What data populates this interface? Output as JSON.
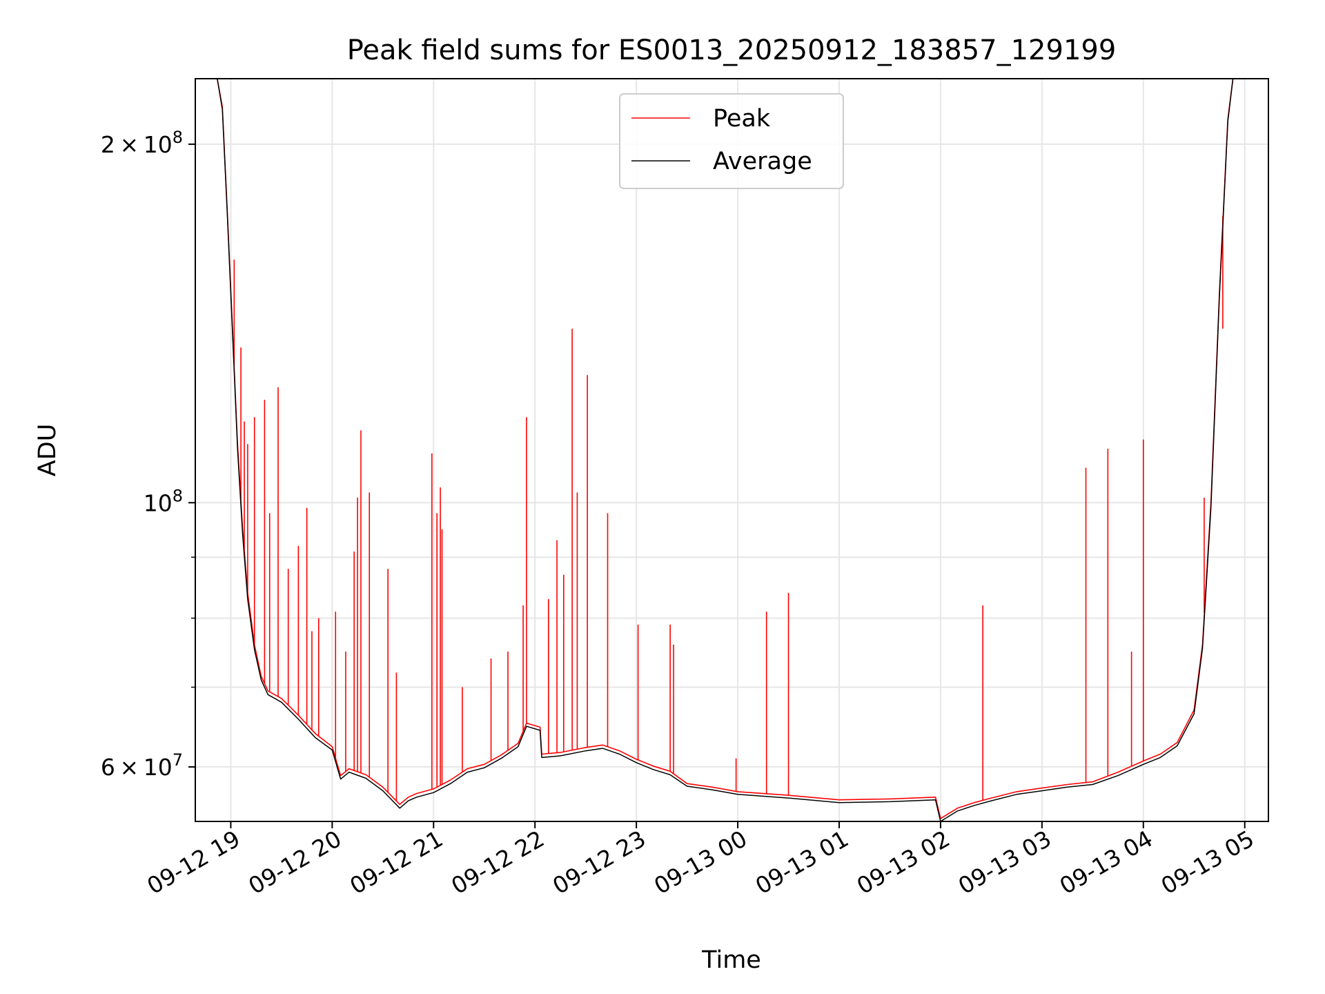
{
  "chart_data": {
    "type": "line",
    "title": "Peak field sums for ES0013_20250912_183857_129199",
    "xlabel": "Time",
    "ylabel": "ADU",
    "y_scale": "log",
    "ylim": [
      54000000,
      227000000
    ],
    "xlim": [
      "2025-09-12 18:39",
      "2025-09-13 05:14"
    ],
    "grid": true,
    "legend_position": "top-center",
    "x_ticks": [
      {
        "label": "09-12 19",
        "value": "2025-09-12 19:00"
      },
      {
        "label": "09-12 20",
        "value": "2025-09-12 20:00"
      },
      {
        "label": "09-12 21",
        "value": "2025-09-12 21:00"
      },
      {
        "label": "09-12 22",
        "value": "2025-09-12 22:00"
      },
      {
        "label": "09-12 23",
        "value": "2025-09-12 23:00"
      },
      {
        "label": "09-13 00",
        "value": "2025-09-13 00:00"
      },
      {
        "label": "09-13 01",
        "value": "2025-09-13 01:00"
      },
      {
        "label": "09-13 02",
        "value": "2025-09-13 02:00"
      },
      {
        "label": "09-13 03",
        "value": "2025-09-13 03:00"
      },
      {
        "label": "09-13 04",
        "value": "2025-09-13 04:00"
      },
      {
        "label": "09-13 05",
        "value": "2025-09-13 05:00"
      }
    ],
    "y_major_ticks": [
      {
        "value": 60000000,
        "mantissa": "6",
        "exponent": "7"
      },
      {
        "value": 100000000,
        "mantissa": "",
        "exponent": "8"
      },
      {
        "value": 200000000,
        "mantissa": "2",
        "exponent": "8"
      }
    ],
    "y_minor_ticks": [
      70000000,
      80000000,
      90000000
    ],
    "series": [
      {
        "name": "Peak",
        "color": "#ff0000",
        "points": [
          [
            "2025-09-12 18:39",
            227000000
          ],
          [
            "2025-09-12 18:52",
            227000000
          ],
          [
            "2025-09-12 18:55",
            215000000
          ],
          [
            "2025-09-12 18:58",
            175000000
          ],
          [
            "2025-09-12 19:01",
            140000000
          ],
          [
            "2025-09-12 19:04",
            112000000
          ],
          [
            "2025-09-12 19:07",
            95000000
          ],
          [
            "2025-09-12 19:10",
            84000000
          ],
          [
            "2025-09-12 19:14",
            76000000
          ],
          [
            "2025-09-12 19:18",
            71500000
          ],
          [
            "2025-09-12 19:22",
            69500000
          ],
          [
            "2025-09-12 19:30",
            68500000
          ],
          [
            "2025-09-12 19:40",
            66300000
          ],
          [
            "2025-09-12 19:50",
            64000000
          ],
          [
            "2025-09-12 20:00",
            62400000
          ],
          [
            "2025-09-12 20:05",
            59000000
          ],
          [
            "2025-09-12 20:10",
            59800000
          ],
          [
            "2025-09-12 20:20",
            59100000
          ],
          [
            "2025-09-12 20:30",
            57700000
          ],
          [
            "2025-09-12 20:40",
            55800000
          ],
          [
            "2025-09-12 20:45",
            56600000
          ],
          [
            "2025-09-12 20:50",
            57000000
          ],
          [
            "2025-09-12 21:00",
            57500000
          ],
          [
            "2025-09-12 21:10",
            58500000
          ],
          [
            "2025-09-12 21:20",
            59800000
          ],
          [
            "2025-09-12 21:30",
            60300000
          ],
          [
            "2025-09-12 21:40",
            61400000
          ],
          [
            "2025-09-12 21:50",
            62800000
          ],
          [
            "2025-09-12 21:55",
            65300000
          ],
          [
            "2025-09-12 22:03",
            64800000
          ],
          [
            "2025-09-12 22:04",
            61500000
          ],
          [
            "2025-09-12 22:15",
            61700000
          ],
          [
            "2025-09-12 22:30",
            62300000
          ],
          [
            "2025-09-12 22:40",
            62600000
          ],
          [
            "2025-09-12 22:50",
            61900000
          ],
          [
            "2025-09-12 23:00",
            60900000
          ],
          [
            "2025-09-12 23:10",
            60100000
          ],
          [
            "2025-09-12 23:20",
            59500000
          ],
          [
            "2025-09-12 23:30",
            58100000
          ],
          [
            "2025-09-12 23:45",
            57700000
          ],
          [
            "2025-09-13 00:00",
            57200000
          ],
          [
            "2025-09-13 00:30",
            56800000
          ],
          [
            "2025-09-13 01:00",
            56300000
          ],
          [
            "2025-09-13 01:30",
            56400000
          ],
          [
            "2025-09-13 01:57",
            56600000
          ],
          [
            "2025-09-13 02:00",
            54300000
          ],
          [
            "2025-09-13 02:10",
            55400000
          ],
          [
            "2025-09-13 02:20",
            56000000
          ],
          [
            "2025-09-13 02:30",
            56500000
          ],
          [
            "2025-09-13 02:45",
            57200000
          ],
          [
            "2025-09-13 03:00",
            57600000
          ],
          [
            "2025-09-13 03:15",
            58000000
          ],
          [
            "2025-09-13 03:30",
            58300000
          ],
          [
            "2025-09-13 03:45",
            59400000
          ],
          [
            "2025-09-13 04:00",
            60700000
          ],
          [
            "2025-09-13 04:10",
            61500000
          ],
          [
            "2025-09-13 04:20",
            62900000
          ],
          [
            "2025-09-13 04:30",
            67000000
          ],
          [
            "2025-09-13 04:35",
            76000000
          ],
          [
            "2025-09-13 04:40",
            100000000
          ],
          [
            "2025-09-13 04:45",
            150000000
          ],
          [
            "2025-09-13 04:50",
            210000000
          ],
          [
            "2025-09-13 04:53",
            227000000
          ],
          [
            "2025-09-13 05:14",
            227000000
          ]
        ],
        "spikes": [
          [
            "2025-09-12 19:02",
            160000000
          ],
          [
            "2025-09-12 19:06",
            135000000
          ],
          [
            "2025-09-12 19:08",
            117000000
          ],
          [
            "2025-09-12 19:10",
            112000000
          ],
          [
            "2025-09-12 19:14",
            118000000
          ],
          [
            "2025-09-12 19:20",
            122000000
          ],
          [
            "2025-09-12 19:23",
            98000000
          ],
          [
            "2025-09-12 19:28",
            125000000
          ],
          [
            "2025-09-12 19:34",
            88000000
          ],
          [
            "2025-09-12 19:40",
            92000000
          ],
          [
            "2025-09-12 19:45",
            99000000
          ],
          [
            "2025-09-12 19:48",
            78000000
          ],
          [
            "2025-09-12 19:52",
            80000000
          ],
          [
            "2025-09-12 20:02",
            81000000
          ],
          [
            "2025-09-12 20:08",
            75000000
          ],
          [
            "2025-09-12 20:13",
            91000000
          ],
          [
            "2025-09-12 20:15",
            101000000
          ],
          [
            "2025-09-12 20:17",
            115000000
          ],
          [
            "2025-09-12 20:22",
            102000000
          ],
          [
            "2025-09-12 20:33",
            88000000
          ],
          [
            "2025-09-12 20:38",
            72000000
          ],
          [
            "2025-09-12 20:59",
            110000000
          ],
          [
            "2025-09-12 21:02",
            98000000
          ],
          [
            "2025-09-12 21:04",
            103000000
          ],
          [
            "2025-09-12 21:05",
            95000000
          ],
          [
            "2025-09-12 21:17",
            70000000
          ],
          [
            "2025-09-12 21:34",
            74000000
          ],
          [
            "2025-09-12 21:44",
            75000000
          ],
          [
            "2025-09-12 21:53",
            82000000
          ],
          [
            "2025-09-12 21:55",
            118000000
          ],
          [
            "2025-09-12 22:08",
            83000000
          ],
          [
            "2025-09-12 22:13",
            93000000
          ],
          [
            "2025-09-12 22:17",
            87000000
          ],
          [
            "2025-09-12 22:22",
            140000000
          ],
          [
            "2025-09-12 22:25",
            102000000
          ],
          [
            "2025-09-12 22:31",
            128000000
          ],
          [
            "2025-09-12 22:43",
            98000000
          ],
          [
            "2025-09-12 23:01",
            79000000
          ],
          [
            "2025-09-12 23:20",
            79000000
          ],
          [
            "2025-09-12 23:22",
            76000000
          ],
          [
            "2025-09-12 23:59",
            61000000
          ],
          [
            "2025-09-13 00:17",
            81000000
          ],
          [
            "2025-09-13 00:30",
            84000000
          ],
          [
            "2025-09-13 02:25",
            82000000
          ],
          [
            "2025-09-13 03:26",
            107000000
          ],
          [
            "2025-09-13 03:39",
            111000000
          ],
          [
            "2025-09-13 03:53",
            75000000
          ],
          [
            "2025-09-13 04:00",
            113000000
          ],
          [
            "2025-09-13 04:36",
            101000000
          ],
          [
            "2025-09-13 04:47",
            140000000
          ]
        ]
      },
      {
        "name": "Average",
        "color": "#000000",
        "points": [
          [
            "2025-09-12 18:39",
            227000000
          ],
          [
            "2025-09-12 18:52",
            227000000
          ],
          [
            "2025-09-12 18:55",
            214000000
          ],
          [
            "2025-09-12 18:58",
            174000000
          ],
          [
            "2025-09-12 19:01",
            139000000
          ],
          [
            "2025-09-12 19:04",
            111000000
          ],
          [
            "2025-09-12 19:07",
            94000000
          ],
          [
            "2025-09-12 19:10",
            83000000
          ],
          [
            "2025-09-12 19:14",
            75300000
          ],
          [
            "2025-09-12 19:18",
            71000000
          ],
          [
            "2025-09-12 19:22",
            69000000
          ],
          [
            "2025-09-12 19:30",
            68000000
          ],
          [
            "2025-09-12 19:40",
            65800000
          ],
          [
            "2025-09-12 19:50",
            63500000
          ],
          [
            "2025-09-12 20:00",
            62000000
          ],
          [
            "2025-09-12 20:05",
            58600000
          ],
          [
            "2025-09-12 20:10",
            59400000
          ],
          [
            "2025-09-12 20:20",
            58700000
          ],
          [
            "2025-09-12 20:30",
            57300000
          ],
          [
            "2025-09-12 20:40",
            55400000
          ],
          [
            "2025-09-12 20:45",
            56200000
          ],
          [
            "2025-09-12 20:50",
            56600000
          ],
          [
            "2025-09-12 21:00",
            57100000
          ],
          [
            "2025-09-12 21:10",
            58100000
          ],
          [
            "2025-09-12 21:20",
            59400000
          ],
          [
            "2025-09-12 21:30",
            59900000
          ],
          [
            "2025-09-12 21:40",
            61000000
          ],
          [
            "2025-09-12 21:50",
            62400000
          ],
          [
            "2025-09-12 21:55",
            64900000
          ],
          [
            "2025-09-12 22:03",
            64400000
          ],
          [
            "2025-09-12 22:04",
            61100000
          ],
          [
            "2025-09-12 22:15",
            61300000
          ],
          [
            "2025-09-12 22:30",
            61900000
          ],
          [
            "2025-09-12 22:40",
            62200000
          ],
          [
            "2025-09-12 22:50",
            61500000
          ],
          [
            "2025-09-12 23:00",
            60500000
          ],
          [
            "2025-09-12 23:10",
            59700000
          ],
          [
            "2025-09-12 23:20",
            59100000
          ],
          [
            "2025-09-12 23:30",
            57800000
          ],
          [
            "2025-09-12 23:45",
            57400000
          ],
          [
            "2025-09-13 00:00",
            56900000
          ],
          [
            "2025-09-13 00:30",
            56500000
          ],
          [
            "2025-09-13 01:00",
            56000000
          ],
          [
            "2025-09-13 01:30",
            56100000
          ],
          [
            "2025-09-13 01:57",
            56300000
          ],
          [
            "2025-09-13 02:00",
            54000000
          ],
          [
            "2025-09-13 02:10",
            55100000
          ],
          [
            "2025-09-13 02:20",
            55700000
          ],
          [
            "2025-09-13 02:30",
            56200000
          ],
          [
            "2025-09-13 02:45",
            56900000
          ],
          [
            "2025-09-13 03:00",
            57300000
          ],
          [
            "2025-09-13 03:15",
            57700000
          ],
          [
            "2025-09-13 03:30",
            58000000
          ],
          [
            "2025-09-13 03:45",
            59000000
          ],
          [
            "2025-09-13 04:00",
            60300000
          ],
          [
            "2025-09-13 04:10",
            61100000
          ],
          [
            "2025-09-13 04:20",
            62500000
          ],
          [
            "2025-09-13 04:30",
            66500000
          ],
          [
            "2025-09-13 04:35",
            75500000
          ],
          [
            "2025-09-13 04:40",
            99000000
          ],
          [
            "2025-09-13 04:45",
            149000000
          ],
          [
            "2025-09-13 04:50",
            209000000
          ],
          [
            "2025-09-13 04:53",
            227000000
          ],
          [
            "2025-09-13 05:14",
            227000000
          ]
        ]
      }
    ]
  }
}
